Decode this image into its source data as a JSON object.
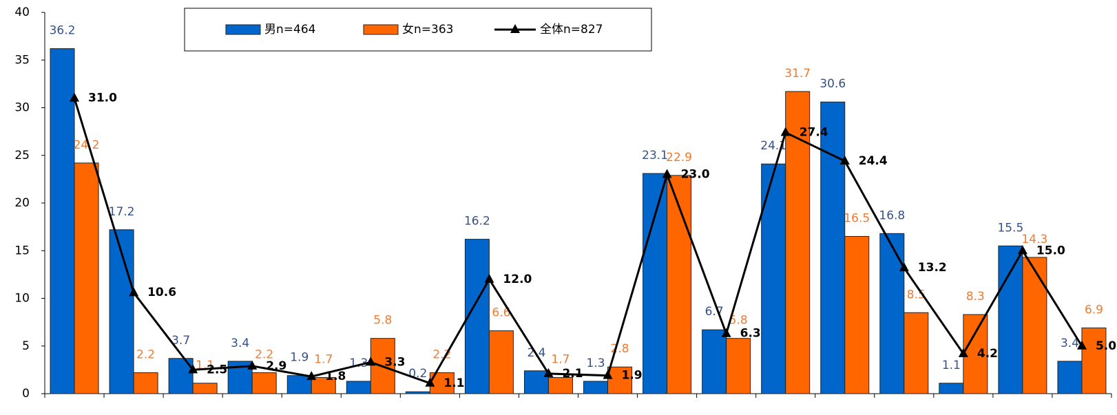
{
  "chart_data": {
    "type": "bar",
    "categories": [
      null,
      null,
      null,
      null,
      null,
      null,
      null,
      null,
      null,
      null,
      null,
      null,
      null,
      null,
      null,
      null,
      null,
      null
    ],
    "series": [
      {
        "name": "男n=464",
        "color": "#0066cc",
        "label_color": "#34508c",
        "values": [
          36.2,
          17.2,
          3.7,
          3.4,
          1.9,
          1.3,
          0.2,
          16.2,
          2.4,
          1.3,
          23.1,
          6.7,
          24.1,
          30.6,
          16.8,
          1.1,
          15.5,
          3.4
        ]
      },
      {
        "name": "女n=363",
        "color": "#ff6600",
        "label_color": "#f07a30",
        "values": [
          24.2,
          2.2,
          1.1,
          2.2,
          1.7,
          5.8,
          2.2,
          6.6,
          1.7,
          2.8,
          22.9,
          5.8,
          31.7,
          16.5,
          8.5,
          8.3,
          14.3,
          6.9
        ]
      },
      {
        "name": "全体n=827",
        "type": "line",
        "color": "#000000",
        "label_color": "#000000",
        "values": [
          31.0,
          10.6,
          2.5,
          2.9,
          1.8,
          3.3,
          1.1,
          12.0,
          2.1,
          1.9,
          23.0,
          6.3,
          27.4,
          24.4,
          13.2,
          4.2,
          15.0,
          5.0
        ],
        "value_labels": [
          "31.0",
          "10.6",
          "2.5",
          "2.9",
          "1.8",
          "3.3",
          "1.1",
          "12.0",
          "2.1",
          "1.9",
          "23.0",
          "6.3",
          "27.4",
          "24.4",
          "13.2",
          "4.2",
          "15.0",
          "5.0"
        ]
      }
    ],
    "ylim": [
      0,
      40
    ],
    "yticks": [
      0,
      5,
      10,
      15,
      20,
      25,
      30,
      35,
      40
    ],
    "legend": "top"
  }
}
